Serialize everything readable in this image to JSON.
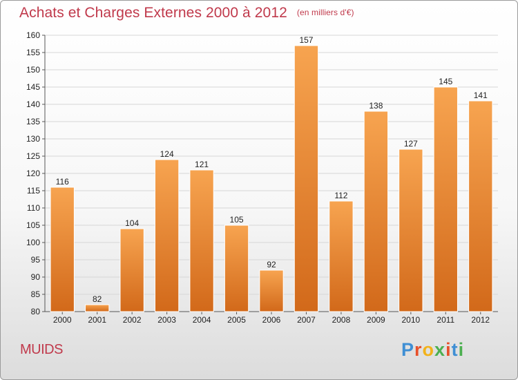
{
  "header": {
    "title": "Achats et Charges Externes 2000 à 2012",
    "unit": "(en milliers d'€)"
  },
  "footer": {
    "commune": "MUIDS",
    "logo_text": "Proxiti",
    "logo_colors": [
      "#3f8fd4",
      "#e8502a",
      "#f2b21b",
      "#4caf50",
      "#e8502a",
      "#3f8fd4",
      "#4caf50"
    ]
  },
  "chart_data": {
    "type": "bar",
    "title": "Achats et Charges Externes 2000 à 2012",
    "xlabel": "",
    "ylabel": "",
    "categories": [
      "2000",
      "2001",
      "2002",
      "2003",
      "2004",
      "2005",
      "2006",
      "2007",
      "2008",
      "2009",
      "2010",
      "2011",
      "2012"
    ],
    "values": [
      116,
      82,
      104,
      124,
      121,
      105,
      92,
      157,
      112,
      138,
      127,
      145,
      141
    ],
    "ylim": [
      80,
      160
    ],
    "yticks": [
      80,
      85,
      90,
      95,
      100,
      105,
      110,
      115,
      120,
      125,
      130,
      135,
      140,
      145,
      150,
      155,
      160
    ],
    "grid": true,
    "bar_color_top": "#f7a450",
    "bar_color_bottom": "#d2691a"
  }
}
